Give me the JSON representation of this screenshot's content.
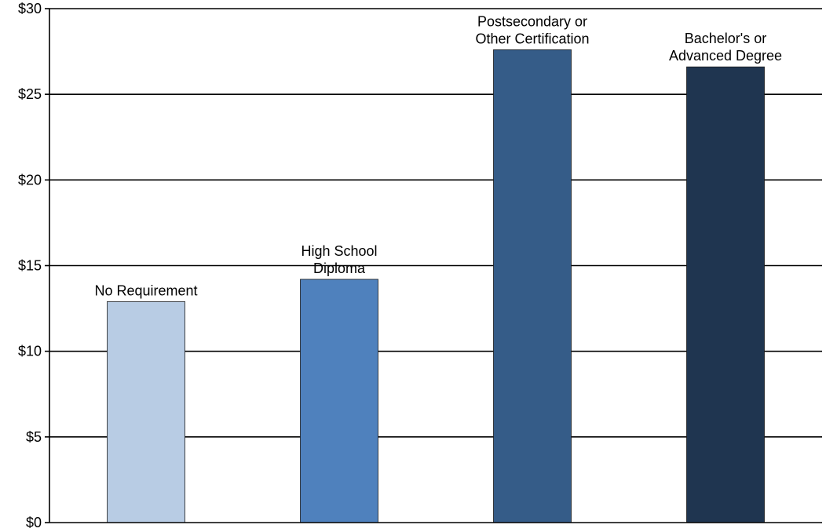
{
  "chart_data": {
    "type": "bar",
    "categories": [
      [
        "No Requirement"
      ],
      [
        "High School",
        "Diploma"
      ],
      [
        "Postsecondary or",
        "Other Certification"
      ],
      [
        "Bachelor's or",
        "Advanced Degree"
      ]
    ],
    "values": [
      12.9,
      14.2,
      27.6,
      26.6
    ],
    "colors": [
      "#B8CCE4",
      "#4F81BD",
      "#355C88",
      "#1F3550"
    ],
    "ylim": [
      0,
      30
    ],
    "y_ticks": [
      "$0",
      "$5",
      "$10",
      "$15",
      "$20",
      "$25",
      "$30"
    ],
    "y_tick_values": [
      0,
      5,
      10,
      15,
      20,
      25,
      30
    ],
    "grid": true,
    "title": "",
    "xlabel": "",
    "ylabel": ""
  }
}
